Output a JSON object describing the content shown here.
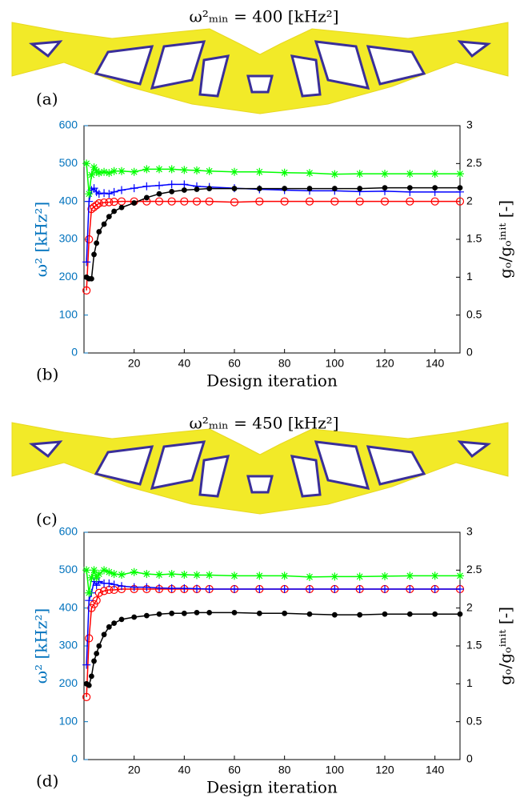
{
  "figures": [
    {
      "title": "ω²ₘᵢₙ = 400 [kHz²]",
      "panel_label": "(a)"
    },
    {
      "title": "ω²ₘᵢₙ = 450 [kHz²]",
      "panel_label": "(c)"
    }
  ],
  "chart_data": [
    {
      "type": "line",
      "panel_label": "(b)",
      "xlabel": "Design iteration",
      "ylabel": "ω² [kHz²]",
      "y2label": "gₒ/gₒⁱⁿⁱᵗ [-]",
      "x": [
        1,
        2,
        3,
        4,
        5,
        6,
        8,
        10,
        12,
        15,
        20,
        25,
        30,
        35,
        40,
        45,
        50,
        60,
        70,
        80,
        90,
        100,
        110,
        120,
        130,
        140,
        150
      ],
      "xlim": [
        0,
        150
      ],
      "xticks": [
        20,
        40,
        60,
        80,
        100,
        120,
        140
      ],
      "ylim": [
        0,
        600
      ],
      "yticks": [
        0,
        100,
        200,
        300,
        400,
        500,
        600
      ],
      "y2lim": [
        0,
        3
      ],
      "y2ticks": [
        0,
        0.5,
        1,
        1.5,
        2,
        2.5,
        3
      ],
      "ytick_color": "#0072bd",
      "series": [
        {
          "color": "#ff0000",
          "marker": "o",
          "values": [
            165,
            300,
            380,
            385,
            390,
            395,
            397,
            398,
            399,
            400,
            400,
            400,
            400,
            400,
            400,
            400,
            400,
            398,
            400,
            400,
            400,
            400,
            400,
            400,
            400,
            400,
            400
          ]
        },
        {
          "color": "#0000ff",
          "marker": "+",
          "values": [
            240,
            400,
            430,
            435,
            425,
            420,
            422,
            420,
            425,
            430,
            435,
            440,
            442,
            445,
            445,
            440,
            438,
            435,
            432,
            430,
            428,
            428,
            426,
            427,
            425,
            425,
            425
          ]
        },
        {
          "color": "#00ff00",
          "marker": "*",
          "values": [
            500,
            420,
            470,
            490,
            480,
            475,
            478,
            475,
            480,
            480,
            478,
            485,
            485,
            485,
            483,
            482,
            480,
            478,
            478,
            476,
            475,
            472,
            473,
            473,
            473,
            473,
            473
          ]
        },
        {
          "color": "#000000",
          "marker": ".",
          "axis": "y2",
          "values": [
            1.0,
            0.98,
            0.98,
            1.3,
            1.45,
            1.6,
            1.7,
            1.8,
            1.87,
            1.92,
            1.98,
            2.05,
            2.1,
            2.13,
            2.15,
            2.16,
            2.17,
            2.17,
            2.17,
            2.17,
            2.17,
            2.17,
            2.17,
            2.18,
            2.18,
            2.18,
            2.18
          ]
        }
      ]
    },
    {
      "type": "line",
      "panel_label": "(d)",
      "xlabel": "Design iteration",
      "ylabel": "ω² [kHz²]",
      "y2label": "gₒ/gₒⁱⁿⁱᵗ [-]",
      "x": [
        1,
        2,
        3,
        4,
        5,
        6,
        8,
        10,
        12,
        15,
        20,
        25,
        30,
        35,
        40,
        45,
        50,
        60,
        70,
        80,
        90,
        100,
        110,
        120,
        130,
        140,
        150
      ],
      "xlim": [
        0,
        150
      ],
      "xticks": [
        20,
        40,
        60,
        80,
        100,
        120,
        140
      ],
      "ylim": [
        0,
        600
      ],
      "yticks": [
        0,
        100,
        200,
        300,
        400,
        500,
        600
      ],
      "y2lim": [
        0,
        3
      ],
      "y2ticks": [
        0,
        0.5,
        1,
        1.5,
        2,
        2.5,
        3
      ],
      "ytick_color": "#0072bd",
      "series": [
        {
          "color": "#ff0000",
          "marker": "o",
          "values": [
            165,
            320,
            400,
            410,
            420,
            440,
            445,
            448,
            448,
            450,
            450,
            450,
            450,
            450,
            450,
            450,
            450,
            450,
            450,
            450,
            450,
            450,
            450,
            450,
            450,
            450,
            450
          ]
        },
        {
          "color": "#0000ff",
          "marker": "+",
          "values": [
            250,
            420,
            440,
            470,
            460,
            470,
            465,
            465,
            462,
            458,
            455,
            455,
            453,
            452,
            452,
            451,
            450,
            450,
            450,
            450,
            450,
            450,
            450,
            450,
            450,
            450,
            450
          ]
        },
        {
          "color": "#00ff00",
          "marker": "*",
          "values": [
            500,
            440,
            480,
            500,
            480,
            490,
            500,
            495,
            490,
            488,
            495,
            490,
            488,
            490,
            488,
            487,
            487,
            485,
            485,
            485,
            482,
            483,
            483,
            484,
            485,
            485,
            485
          ]
        },
        {
          "color": "#000000",
          "marker": ".",
          "axis": "y2",
          "values": [
            1.0,
            0.98,
            1.1,
            1.3,
            1.4,
            1.5,
            1.65,
            1.75,
            1.8,
            1.85,
            1.88,
            1.9,
            1.92,
            1.93,
            1.93,
            1.94,
            1.94,
            1.94,
            1.93,
            1.93,
            1.92,
            1.91,
            1.91,
            1.92,
            1.92,
            1.92,
            1.92
          ]
        }
      ]
    }
  ]
}
